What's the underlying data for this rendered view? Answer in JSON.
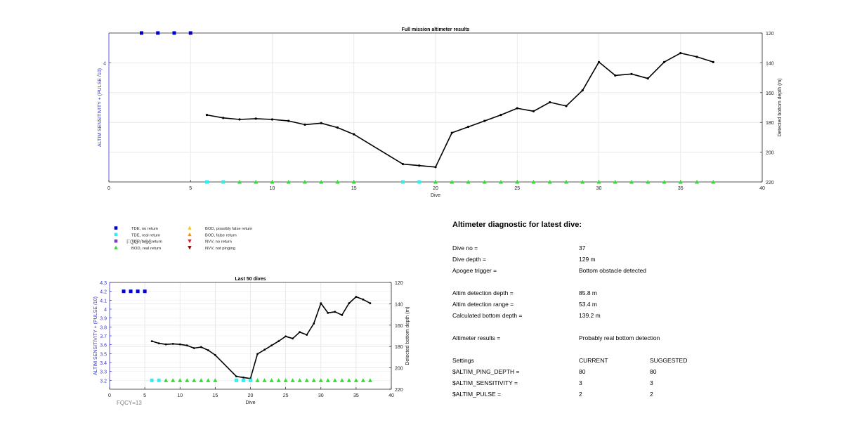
{
  "colors": {
    "tde_no_return": "#0000cc",
    "tde_real_return": "#33eeee",
    "tde_false_return": "#7a3ec9",
    "bod_real_return": "#33dd33",
    "bod_possibly_false": "#eecc22",
    "bod_false_return": "#ee9900",
    "nvv_no_return": "#dd2222",
    "nvv_not_pinging": "#880000",
    "left_axis": "#3333cc",
    "depth_line": "#000000"
  },
  "legend": [
    {
      "label": "TDE, no return",
      "marker": "square",
      "color": "#0000cc"
    },
    {
      "label": "TDE, real return",
      "marker": "square",
      "color": "#33eeee"
    },
    {
      "label": "TDE, false return",
      "marker": "square",
      "color": "#7a3ec9"
    },
    {
      "label": "BOD, real return",
      "marker": "triangle-up",
      "color": "#33dd33"
    },
    {
      "label": "BOD, possibly false return",
      "marker": "triangle-up",
      "color": "#eecc22"
    },
    {
      "label": "BOD, false return",
      "marker": "triangle-up",
      "color": "#ee9900"
    },
    {
      "label": "NVV, no return",
      "marker": "triangle-down",
      "color": "#dd2222"
    },
    {
      "label": "NVV, not pinging",
      "marker": "triangle-down",
      "color": "#880000"
    }
  ],
  "fqcy_label": "FQCY=13",
  "chart_data": [
    {
      "type": "line",
      "title": "Full mission altimeter results",
      "xlabel": "Dive",
      "ylabel": "ALTIM SENSITIVITY + (PULSE /10)",
      "y2label": "Detected bottom depth (m)",
      "xlim": [
        0,
        40
      ],
      "xticks": [
        0,
        5,
        10,
        15,
        20,
        25,
        30,
        35,
        40
      ],
      "ylim": [
        3.2,
        4.2
      ],
      "yticks": [
        4
      ],
      "y2lim": [
        120,
        220
      ],
      "y2ticks": [
        120,
        140,
        160,
        180,
        200,
        220
      ],
      "y2_reversed": true,
      "grid": true,
      "series": [
        {
          "name": "TDE, no return",
          "x": [
            2,
            3,
            4,
            5
          ],
          "y": [
            4.2,
            4.2,
            4.2,
            4.2
          ]
        },
        {
          "name": "TDE, real return",
          "x": [
            6,
            7,
            18,
            19
          ],
          "y": [
            3.2,
            3.2,
            3.2,
            3.2
          ]
        },
        {
          "name": "BOD, real return",
          "x": [
            8,
            9,
            10,
            11,
            12,
            13,
            14,
            15,
            20,
            21,
            22,
            23,
            24,
            25,
            26,
            27,
            28,
            29,
            30,
            31,
            32,
            33,
            34,
            35,
            36,
            37
          ],
          "y": [
            3.2,
            3.2,
            3.2,
            3.2,
            3.2,
            3.2,
            3.2,
            3.2,
            3.2,
            3.2,
            3.2,
            3.2,
            3.2,
            3.2,
            3.2,
            3.2,
            3.2,
            3.2,
            3.2,
            3.2,
            3.2,
            3.2,
            3.2,
            3.2,
            3.2,
            3.2
          ]
        }
      ],
      "depth": {
        "x": [
          6,
          7,
          8,
          9,
          10,
          11,
          12,
          13,
          14,
          15,
          18,
          19,
          20,
          21,
          22,
          23,
          24,
          25,
          26,
          27,
          28,
          29,
          30,
          31,
          32,
          33,
          34,
          35,
          36,
          37
        ],
        "y": [
          175,
          177,
          178,
          177.5,
          178,
          179,
          181.5,
          180.5,
          183.5,
          188,
          208,
          209,
          210,
          187,
          183,
          179,
          175,
          170.5,
          172.5,
          166.5,
          169,
          158.5,
          139.5,
          148.5,
          147.5,
          150.5,
          139.5,
          133.5,
          136,
          139.5
        ]
      }
    },
    {
      "type": "line",
      "title": "Last 50 dives",
      "xlabel": "Dive",
      "ylabel": "ALTIM SENSITIVITY + (PULSE /10)",
      "y2label": "Detected bottom depth (m)",
      "xlim": [
        0,
        40
      ],
      "xticks": [
        0,
        5,
        10,
        15,
        20,
        25,
        30,
        35,
        40
      ],
      "ylim": [
        3.1,
        4.3
      ],
      "yticks": [
        3.2,
        3.3,
        3.4,
        3.5,
        3.6,
        3.7,
        3.8,
        3.9,
        4,
        4.1,
        4.2,
        4.3
      ],
      "y2lim": [
        120,
        220
      ],
      "y2ticks": [
        120,
        140,
        160,
        180,
        200,
        220
      ],
      "y2_reversed": true,
      "grid": true,
      "series": [
        {
          "name": "TDE, no return",
          "x": [
            2,
            3,
            4,
            5
          ],
          "y": [
            4.2,
            4.2,
            4.2,
            4.2
          ]
        },
        {
          "name": "TDE, real return",
          "x": [
            6,
            7,
            18,
            19,
            20
          ],
          "y": [
            3.2,
            3.2,
            3.2,
            3.2,
            3.2
          ]
        },
        {
          "name": "BOD, real return",
          "x": [
            8,
            9,
            10,
            11,
            12,
            13,
            14,
            15,
            21,
            22,
            23,
            24,
            25,
            26,
            27,
            28,
            29,
            30,
            31,
            32,
            33,
            34,
            35,
            36,
            37
          ],
          "y": [
            3.2,
            3.2,
            3.2,
            3.2,
            3.2,
            3.2,
            3.2,
            3.2,
            3.2,
            3.2,
            3.2,
            3.2,
            3.2,
            3.2,
            3.2,
            3.2,
            3.2,
            3.2,
            3.2,
            3.2,
            3.2,
            3.2,
            3.2,
            3.2,
            3.2
          ]
        }
      ],
      "depth": {
        "x": [
          6,
          7,
          8,
          9,
          10,
          11,
          12,
          13,
          14,
          15,
          18,
          19,
          20,
          21,
          22,
          23,
          24,
          25,
          26,
          27,
          28,
          29,
          30,
          31,
          32,
          33,
          34,
          35,
          36,
          37
        ],
        "y": [
          175,
          177,
          178,
          177.5,
          178,
          179,
          181.5,
          180.5,
          183.5,
          188,
          208,
          209,
          210,
          187,
          183,
          179,
          175,
          170.5,
          172.5,
          166.5,
          169,
          158.5,
          139.5,
          148.5,
          147.5,
          150.5,
          139.5,
          133.5,
          136,
          139.5
        ]
      }
    }
  ],
  "diagnostic": {
    "title": "Altimeter diagnostic for latest dive:",
    "rows": [
      {
        "label": "Dive no =",
        "value": "37"
      },
      {
        "label": "Dive depth =",
        "value": "129 m"
      },
      {
        "label": "Apogee trigger =",
        "value": "Bottom obstacle detected"
      },
      {
        "label": "Altim detection depth =",
        "value": "85.8 m"
      },
      {
        "label": "Altim detection range =",
        "value": "53.4 m"
      },
      {
        "label": "Calculated bottom depth =",
        "value": "139.2 m"
      },
      {
        "label": "Altimeter results =",
        "value": "Probably real bottom detection"
      }
    ],
    "settings": {
      "header": {
        "label": "Settings",
        "current": "CURRENT",
        "suggested": "SUGGESTED"
      },
      "rows": [
        {
          "label": "$ALTIM_PING_DEPTH =",
          "current": "80",
          "suggested": "80"
        },
        {
          "label": "$ALTIM_SENSITIVITY =",
          "current": "3",
          "suggested": "3"
        },
        {
          "label": "$ALTIM_PULSE =",
          "current": "2",
          "suggested": "2"
        }
      ]
    }
  }
}
